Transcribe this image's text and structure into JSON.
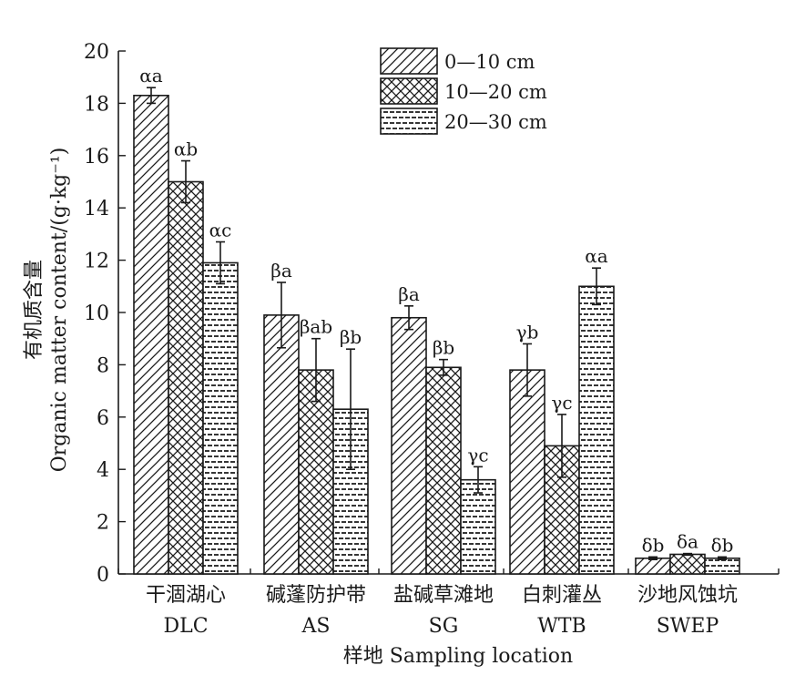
{
  "chart_data": {
    "type": "bar",
    "title": "",
    "xlabel": "样地 Sampling location",
    "ylabel_cn": "有机质含量",
    "ylabel": "Organic matter content/(g·kg⁻¹)",
    "ylim": [
      0,
      20
    ],
    "yticks": [
      0,
      2,
      4,
      6,
      8,
      10,
      12,
      14,
      16,
      18,
      20
    ],
    "grid": false,
    "legend_position": "top-center",
    "categories": [
      {
        "cn": "干涸湖心",
        "en": "DLC"
      },
      {
        "cn": "碱蓬防护带",
        "en": "AS"
      },
      {
        "cn": "盐碱草滩地",
        "en": "SG"
      },
      {
        "cn": "白刺灌丛",
        "en": "WTB"
      },
      {
        "cn": "沙地风蚀坑",
        "en": "SWEP"
      }
    ],
    "series": [
      {
        "name": "0—10 cm",
        "pattern": "diagonal-hatch",
        "values": [
          18.3,
          9.9,
          9.8,
          7.8,
          0.6
        ],
        "errors": [
          0.3,
          1.25,
          0.45,
          1.0,
          0.05
        ],
        "labels": [
          "αa",
          "βa",
          "βa",
          "γb",
          "δb"
        ]
      },
      {
        "name": "10—20 cm",
        "pattern": "cross-hatch",
        "values": [
          15.0,
          7.8,
          7.9,
          4.9,
          0.75
        ],
        "errors": [
          0.8,
          1.2,
          0.3,
          1.2,
          0.03
        ],
        "labels": [
          "αb",
          "βab",
          "βb",
          "γc",
          "δa"
        ]
      },
      {
        "name": "20—30 cm",
        "pattern": "dashed-lines",
        "values": [
          11.9,
          6.3,
          3.6,
          11.0,
          0.6
        ],
        "errors": [
          0.8,
          2.3,
          0.5,
          0.7,
          0.05
        ],
        "labels": [
          "αc",
          "βb",
          "γc",
          "αa",
          "δb"
        ]
      }
    ]
  }
}
